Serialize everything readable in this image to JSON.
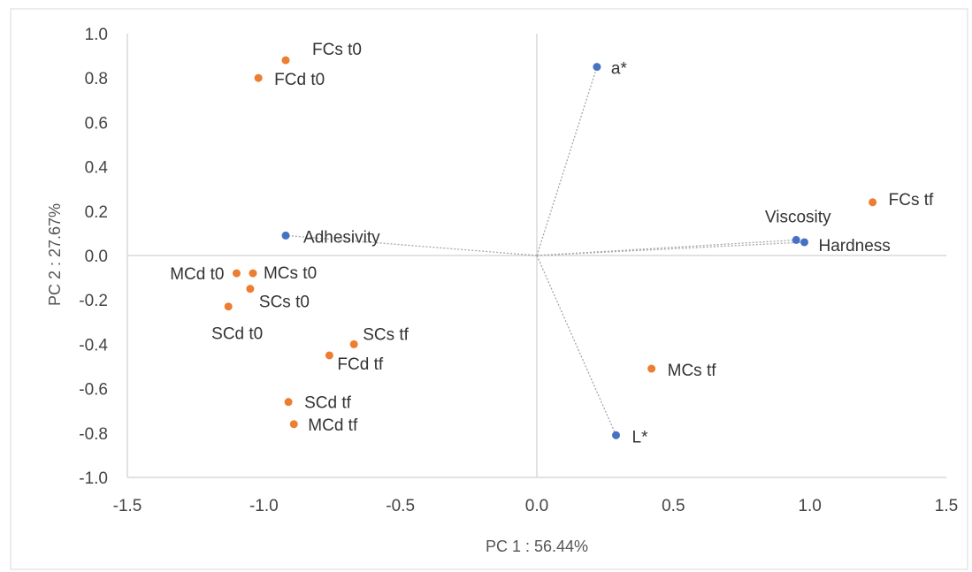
{
  "chart_data": {
    "type": "scatter",
    "title": "",
    "xlabel": "PC 1 : 56.44%",
    "ylabel": "PC 2 : 27.67%",
    "xlim": [
      -1.5,
      1.5
    ],
    "ylim": [
      -1.0,
      1.0
    ],
    "xticks": [
      -1.5,
      -1.0,
      -0.5,
      0.0,
      0.5,
      1.0,
      1.5
    ],
    "yticks": [
      -1.0,
      -0.8,
      -0.6,
      -0.4,
      -0.2,
      0.0,
      0.2,
      0.4,
      0.6,
      0.8,
      1.0
    ],
    "xtick_labels": [
      "-1.5",
      "-1.0",
      "-0.5",
      "0.0",
      "0.5",
      "1.0",
      "1.5"
    ],
    "ytick_labels": [
      "-1.0",
      "-0.8",
      "-0.6",
      "-0.4",
      "-0.2",
      "0.0",
      "0.2",
      "0.4",
      "0.6",
      "0.8",
      "1.0"
    ],
    "grid": false,
    "legend": "none",
    "colors": {
      "samples": "#ED7D31",
      "variables": "#4472C4",
      "vectors": "#A6A6A6",
      "zero_axes": "#D9D9D9",
      "frame": "#D9D9D9"
    },
    "series": [
      {
        "points": [
          {
            "label": "FCs t0",
            "x": -0.92,
            "y": 0.88
          },
          {
            "label": "FCd t0",
            "x": -1.02,
            "y": 0.8
          },
          {
            "label": "MCd t0",
            "x": -1.1,
            "y": -0.08
          },
          {
            "label": "MCs t0",
            "x": -1.04,
            "y": -0.08
          },
          {
            "label": "SCs t0",
            "x": -1.05,
            "y": -0.15
          },
          {
            "label": "SCd t0",
            "x": -1.13,
            "y": -0.23
          },
          {
            "label": "SCs tf",
            "x": -0.67,
            "y": -0.4
          },
          {
            "label": "FCd tf",
            "x": -0.76,
            "y": -0.45
          },
          {
            "label": "SCd tf",
            "x": -0.91,
            "y": -0.66
          },
          {
            "label": "MCd tf",
            "x": -0.89,
            "y": -0.76
          },
          {
            "label": "FCs tf",
            "x": 1.23,
            "y": 0.24
          },
          {
            "label": "MCs tf",
            "x": 0.42,
            "y": -0.51
          }
        ]
      },
      {
        "points": [
          {
            "label": "a*",
            "x": 0.22,
            "y": 0.85
          },
          {
            "label": "Adhesivity",
            "x": -0.92,
            "y": 0.09
          },
          {
            "label": "Viscosity",
            "x": 0.95,
            "y": 0.07
          },
          {
            "label": "Hardness",
            "x": 0.98,
            "y": 0.06
          },
          {
            "label": "L*",
            "x": 0.29,
            "y": -0.81
          }
        ]
      }
    ]
  }
}
